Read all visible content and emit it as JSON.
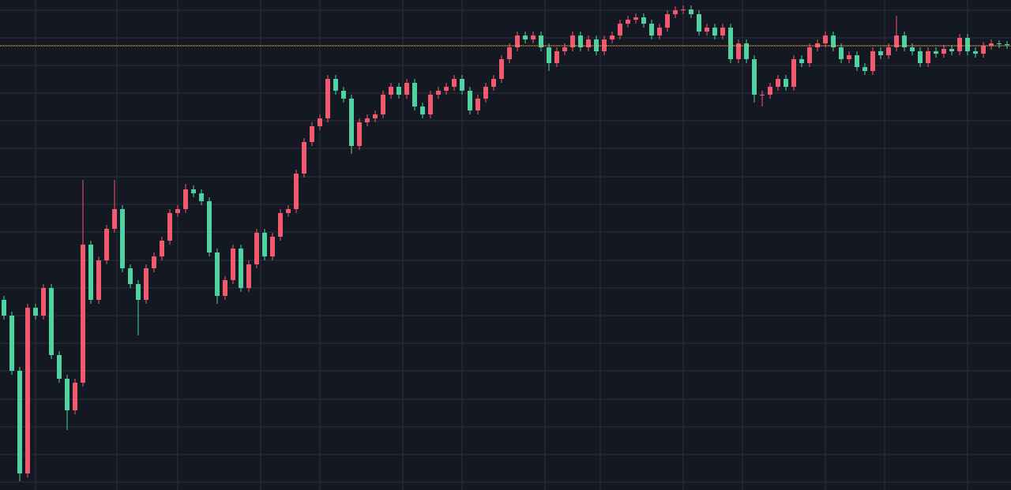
{
  "chart_data": {
    "type": "candlestick",
    "background": "#141823",
    "grid": true,
    "grid_color": "#2a2f3b",
    "up_color": "#ef5a6f",
    "down_color": "#4fd1a0",
    "xlim": [
      -0.5,
      127.5
    ],
    "xticks": [
      4,
      14.3,
      22,
      32.5,
      40,
      50.5,
      58,
      68.5,
      75.5,
      86,
      93.5,
      104,
      111.5,
      122
    ],
    "ylim": [
      0,
      621
    ],
    "yticks": [
      10,
      45,
      80,
      115,
      151,
      186,
      221,
      256,
      291,
      327,
      362,
      397,
      433,
      468,
      503,
      538,
      573,
      608
    ],
    "price_line": {
      "value": 563,
      "color": "#e8a64c"
    },
    "open": [
      241,
      221,
      151,
      21,
      231,
      221,
      256,
      171,
      141,
      101,
      136,
      311,
      241,
      291,
      331,
      356,
      281,
      261,
      241,
      281,
      296,
      316,
      351,
      356,
      381,
      376,
      366,
      301,
      246,
      266,
      306,
      256,
      286,
      326,
      296,
      321,
      351,
      356,
      401,
      441,
      461,
      471,
      521,
      506,
      496,
      436,
      466,
      471,
      476,
      501,
      511,
      501,
      516,
      486,
      476,
      501,
      506,
      511,
      521,
      506,
      481,
      496,
      511,
      521,
      546,
      561,
      576,
      571,
      576,
      561,
      541,
      556,
      561,
      576,
      561,
      571,
      556,
      571,
      576,
      591,
      596,
      599,
      591,
      576,
      586,
      603,
      608,
      609,
      603,
      581,
      586,
      576,
      586,
      546,
      566,
      546,
      501,
      501,
      511,
      521,
      511,
      546,
      541,
      561,
      566,
      576,
      561,
      546,
      551,
      536,
      531,
      556,
      551,
      561,
      576,
      561,
      556,
      541,
      556,
      553,
      559,
      556,
      573,
      556,
      553,
      563,
      566,
      565
    ],
    "high": [
      246,
      226,
      156,
      236,
      236,
      261,
      261,
      176,
      146,
      141,
      393,
      316,
      296,
      336,
      393,
      361,
      286,
      266,
      286,
      301,
      321,
      356,
      361,
      388,
      386,
      381,
      371,
      306,
      271,
      311,
      311,
      291,
      331,
      331,
      326,
      356,
      361,
      406,
      446,
      466,
      476,
      526,
      526,
      511,
      501,
      471,
      476,
      481,
      506,
      516,
      516,
      521,
      521,
      491,
      506,
      511,
      516,
      526,
      526,
      511,
      501,
      516,
      526,
      551,
      566,
      581,
      581,
      581,
      581,
      566,
      561,
      566,
      581,
      581,
      576,
      576,
      576,
      581,
      596,
      601,
      604,
      604,
      596,
      591,
      608,
      613,
      614,
      614,
      608,
      591,
      591,
      591,
      591,
      571,
      571,
      551,
      506,
      516,
      526,
      526,
      551,
      551,
      566,
      571,
      581,
      581,
      566,
      556,
      556,
      541,
      561,
      561,
      566,
      601,
      581,
      566,
      561,
      561,
      561,
      564,
      564,
      578,
      578,
      561,
      568,
      571,
      570,
      569
    ],
    "low": [
      216,
      146,
      11,
      16,
      216,
      216,
      166,
      136,
      76,
      96,
      131,
      236,
      236,
      286,
      326,
      276,
      256,
      196,
      236,
      276,
      291,
      311,
      346,
      351,
      371,
      361,
      296,
      236,
      241,
      261,
      251,
      251,
      281,
      291,
      291,
      316,
      346,
      351,
      396,
      436,
      456,
      466,
      501,
      491,
      426,
      431,
      461,
      466,
      471,
      496,
      496,
      496,
      481,
      471,
      471,
      496,
      501,
      506,
      501,
      476,
      476,
      491,
      506,
      516,
      541,
      556,
      566,
      566,
      556,
      531,
      536,
      551,
      556,
      556,
      556,
      551,
      551,
      566,
      571,
      586,
      591,
      586,
      571,
      571,
      581,
      598,
      603,
      598,
      576,
      576,
      571,
      571,
      541,
      541,
      541,
      491,
      486,
      496,
      506,
      506,
      506,
      536,
      536,
      556,
      561,
      556,
      541,
      541,
      531,
      526,
      526,
      546,
      546,
      556,
      556,
      551,
      536,
      536,
      548,
      548,
      551,
      551,
      551,
      548,
      548,
      558,
      560,
      559
    ],
    "close": [
      221,
      151,
      21,
      231,
      221,
      256,
      171,
      141,
      101,
      136,
      311,
      241,
      291,
      331,
      356,
      281,
      261,
      241,
      281,
      296,
      316,
      351,
      356,
      381,
      376,
      366,
      301,
      246,
      266,
      306,
      256,
      286,
      326,
      296,
      321,
      351,
      356,
      401,
      441,
      461,
      471,
      521,
      506,
      496,
      436,
      466,
      471,
      476,
      501,
      511,
      501,
      516,
      486,
      476,
      501,
      506,
      511,
      521,
      506,
      481,
      496,
      511,
      521,
      546,
      561,
      576,
      571,
      576,
      561,
      541,
      556,
      561,
      576,
      561,
      571,
      556,
      571,
      576,
      591,
      596,
      599,
      591,
      576,
      586,
      603,
      608,
      609,
      603,
      581,
      586,
      576,
      586,
      546,
      566,
      546,
      501,
      501,
      511,
      521,
      511,
      546,
      541,
      561,
      566,
      576,
      561,
      546,
      551,
      536,
      531,
      556,
      551,
      561,
      576,
      561,
      556,
      541,
      556,
      553,
      559,
      556,
      573,
      556,
      553,
      563,
      566,
      565,
      564
    ]
  }
}
